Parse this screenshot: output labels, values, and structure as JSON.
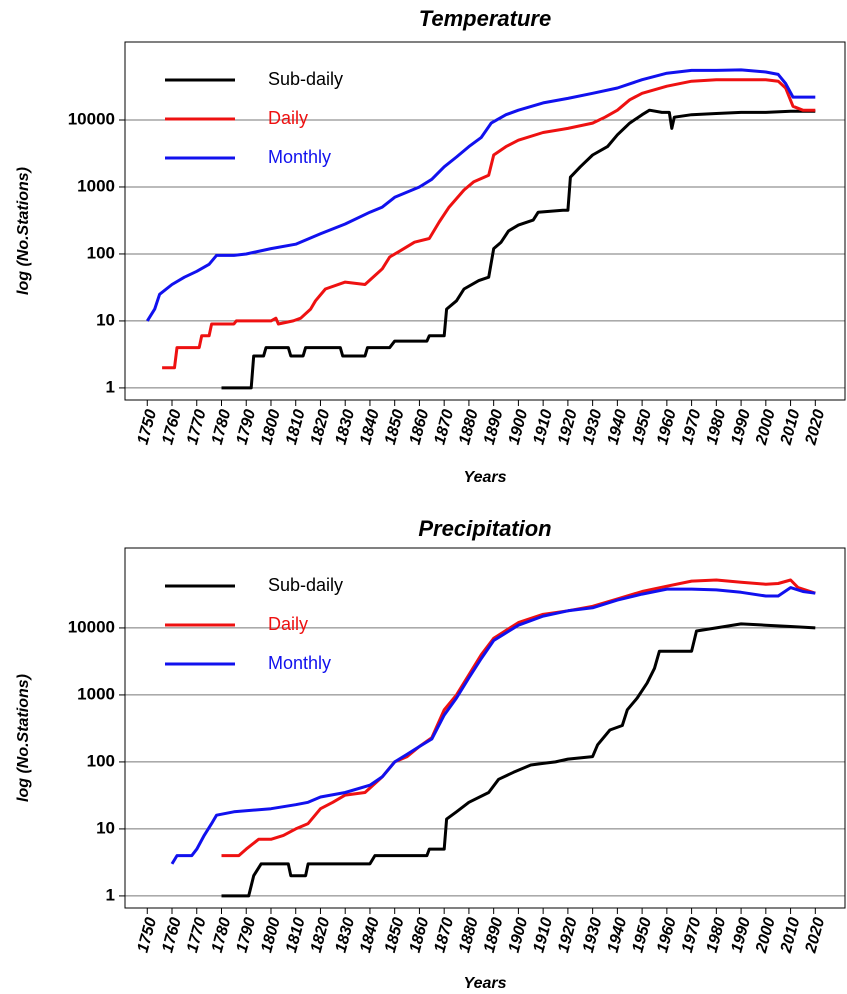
{
  "chart_data": [
    {
      "type": "line",
      "title": "Temperature",
      "xlabel": "Years",
      "ylabel": "log  (No.Stations)",
      "xlim": [
        1741,
        2032
      ],
      "ylim": [
        0.66,
        146000
      ],
      "log_scale": "y",
      "grid": true,
      "legend": "upper left",
      "xticks": [
        1750,
        1760,
        1770,
        1780,
        1790,
        1800,
        1810,
        1820,
        1830,
        1840,
        1850,
        1860,
        1870,
        1880,
        1890,
        1900,
        1910,
        1920,
        1930,
        1940,
        1950,
        1960,
        1970,
        1980,
        1990,
        2000,
        2010,
        2020
      ],
      "yticks": [
        1,
        10,
        100,
        1000,
        10000
      ],
      "series": [
        {
          "name": "Sub-daily",
          "color": "#000000",
          "x": [
            1780,
            1792,
            1793,
            1797,
            1798,
            1807,
            1808,
            1813,
            1814,
            1828,
            1829,
            1838,
            1839,
            1848,
            1850,
            1863,
            1864,
            1870,
            1871,
            1875,
            1878,
            1884,
            1888,
            1890,
            1893,
            1896,
            1900,
            1906,
            1908,
            1918,
            1920,
            1921,
            1925,
            1930,
            1936,
            1940,
            1945,
            1950,
            1953,
            1958,
            1961,
            1962,
            1963,
            1970,
            1980,
            1990,
            2000,
            2010,
            2020
          ],
          "values": [
            1,
            1,
            3,
            3,
            4,
            4,
            3,
            3,
            4,
            4,
            3,
            3,
            4,
            4,
            5,
            5,
            6,
            6,
            15,
            20,
            30,
            40,
            45,
            120,
            150,
            220,
            270,
            320,
            420,
            450,
            450,
            1400,
            2000,
            3000,
            4000,
            6000,
            9000,
            12000,
            14000,
            13000,
            13000,
            7500,
            11000,
            12000,
            12500,
            13000,
            13000,
            13500,
            13500
          ]
        },
        {
          "name": "Daily",
          "color": "#ee1111",
          "x": [
            1756,
            1761,
            1762,
            1771,
            1772,
            1775,
            1776,
            1785,
            1786,
            1800,
            1802,
            1803,
            1809,
            1812,
            1816,
            1818,
            1822,
            1830,
            1838,
            1845,
            1848,
            1852,
            1858,
            1864,
            1868,
            1872,
            1878,
            1882,
            1888,
            1890,
            1895,
            1900,
            1910,
            1920,
            1930,
            1935,
            1940,
            1945,
            1950,
            1960,
            1970,
            1980,
            1990,
            2000,
            2005,
            2008,
            2011,
            2015,
            2020
          ],
          "values": [
            2,
            2,
            4,
            4,
            6,
            6,
            9,
            9,
            10,
            10,
            11,
            9,
            10,
            11,
            15,
            20,
            30,
            38,
            35,
            60,
            90,
            110,
            150,
            170,
            300,
            500,
            900,
            1200,
            1500,
            3000,
            4000,
            5000,
            6500,
            7500,
            9000,
            11000,
            14000,
            20000,
            25000,
            32000,
            38000,
            40000,
            40000,
            40000,
            38000,
            30000,
            16000,
            14000,
            14000
          ]
        },
        {
          "name": "Monthly",
          "color": "#1111ee",
          "x": [
            1750,
            1753,
            1755,
            1760,
            1765,
            1770,
            1775,
            1778,
            1785,
            1790,
            1800,
            1810,
            1820,
            1830,
            1840,
            1845,
            1850,
            1860,
            1865,
            1870,
            1875,
            1880,
            1885,
            1889,
            1895,
            1900,
            1910,
            1920,
            1930,
            1940,
            1950,
            1960,
            1970,
            1980,
            1990,
            2000,
            2005,
            2008,
            2011,
            2020
          ],
          "values": [
            10,
            15,
            25,
            35,
            45,
            55,
            70,
            95,
            95,
            100,
            120,
            140,
            200,
            280,
            420,
            500,
            700,
            1000,
            1300,
            2000,
            2800,
            4000,
            5500,
            9000,
            12000,
            14000,
            18000,
            21000,
            25000,
            30000,
            40000,
            50000,
            55000,
            55000,
            56000,
            52000,
            48000,
            35000,
            22000,
            22000
          ]
        }
      ]
    },
    {
      "type": "line",
      "title": "Precipitation",
      "xlabel": "Years",
      "ylabel": "log  (No.Stations)",
      "xlim": [
        1741,
        2032
      ],
      "ylim": [
        0.66,
        156000
      ],
      "log_scale": "y",
      "grid": true,
      "legend": "upper left",
      "xticks": [
        1750,
        1760,
        1770,
        1780,
        1790,
        1800,
        1810,
        1820,
        1830,
        1840,
        1850,
        1860,
        1870,
        1880,
        1890,
        1900,
        1910,
        1920,
        1930,
        1940,
        1950,
        1960,
        1970,
        1980,
        1990,
        2000,
        2010,
        2020
      ],
      "yticks": [
        1,
        10,
        100,
        1000,
        10000
      ],
      "series": [
        {
          "name": "Sub-daily",
          "color": "#000000",
          "x": [
            1780,
            1791,
            1793,
            1796,
            1807,
            1808,
            1814,
            1815,
            1840,
            1842,
            1863,
            1864,
            1870,
            1871,
            1875,
            1880,
            1888,
            1892,
            1898,
            1905,
            1910,
            1915,
            1920,
            1930,
            1932,
            1937,
            1942,
            1944,
            1948,
            1952,
            1955,
            1957,
            1970,
            1972,
            1980,
            1990,
            2000,
            2010,
            2020
          ],
          "values": [
            1,
            1,
            2,
            3,
            3,
            2,
            2,
            3,
            3,
            4,
            4,
            5,
            5,
            14,
            18,
            25,
            35,
            55,
            70,
            90,
            95,
            100,
            110,
            120,
            180,
            300,
            350,
            600,
            900,
            1500,
            2500,
            4500,
            4500,
            9000,
            10000,
            11500,
            11000,
            10500,
            10000
          ]
        },
        {
          "name": "Daily",
          "color": "#ee1111",
          "x": [
            1780,
            1787,
            1790,
            1795,
            1800,
            1805,
            1810,
            1815,
            1820,
            1825,
            1830,
            1838,
            1845,
            1850,
            1855,
            1860,
            1865,
            1870,
            1875,
            1880,
            1885,
            1890,
            1900,
            1910,
            1920,
            1930,
            1940,
            1950,
            1960,
            1970,
            1980,
            1990,
            2000,
            2005,
            2010,
            2013,
            2020
          ],
          "values": [
            4,
            4,
            5,
            7,
            7,
            8,
            10,
            12,
            20,
            25,
            32,
            35,
            60,
            100,
            120,
            170,
            230,
            600,
            1000,
            2000,
            4000,
            7000,
            12000,
            16000,
            18000,
            21000,
            27000,
            35000,
            42000,
            50000,
            52000,
            48000,
            45000,
            46000,
            52000,
            40000,
            33000
          ]
        },
        {
          "name": "Monthly",
          "color": "#1111ee",
          "x": [
            1760,
            1762,
            1768,
            1770,
            1773,
            1776,
            1778,
            1785,
            1800,
            1810,
            1815,
            1820,
            1830,
            1840,
            1845,
            1850,
            1855,
            1860,
            1865,
            1870,
            1875,
            1880,
            1885,
            1890,
            1900,
            1910,
            1920,
            1930,
            1940,
            1950,
            1960,
            1970,
            1980,
            1990,
            2000,
            2005,
            2010,
            2015,
            2020
          ],
          "values": [
            3,
            4,
            4,
            5,
            8,
            12,
            16,
            18,
            20,
            23,
            25,
            30,
            35,
            45,
            60,
            100,
            130,
            170,
            220,
            500,
            900,
            1800,
            3500,
            6500,
            11000,
            15000,
            18000,
            20000,
            26000,
            32000,
            38000,
            38000,
            37000,
            34000,
            30000,
            30000,
            40000,
            35000,
            33000
          ]
        }
      ]
    }
  ]
}
